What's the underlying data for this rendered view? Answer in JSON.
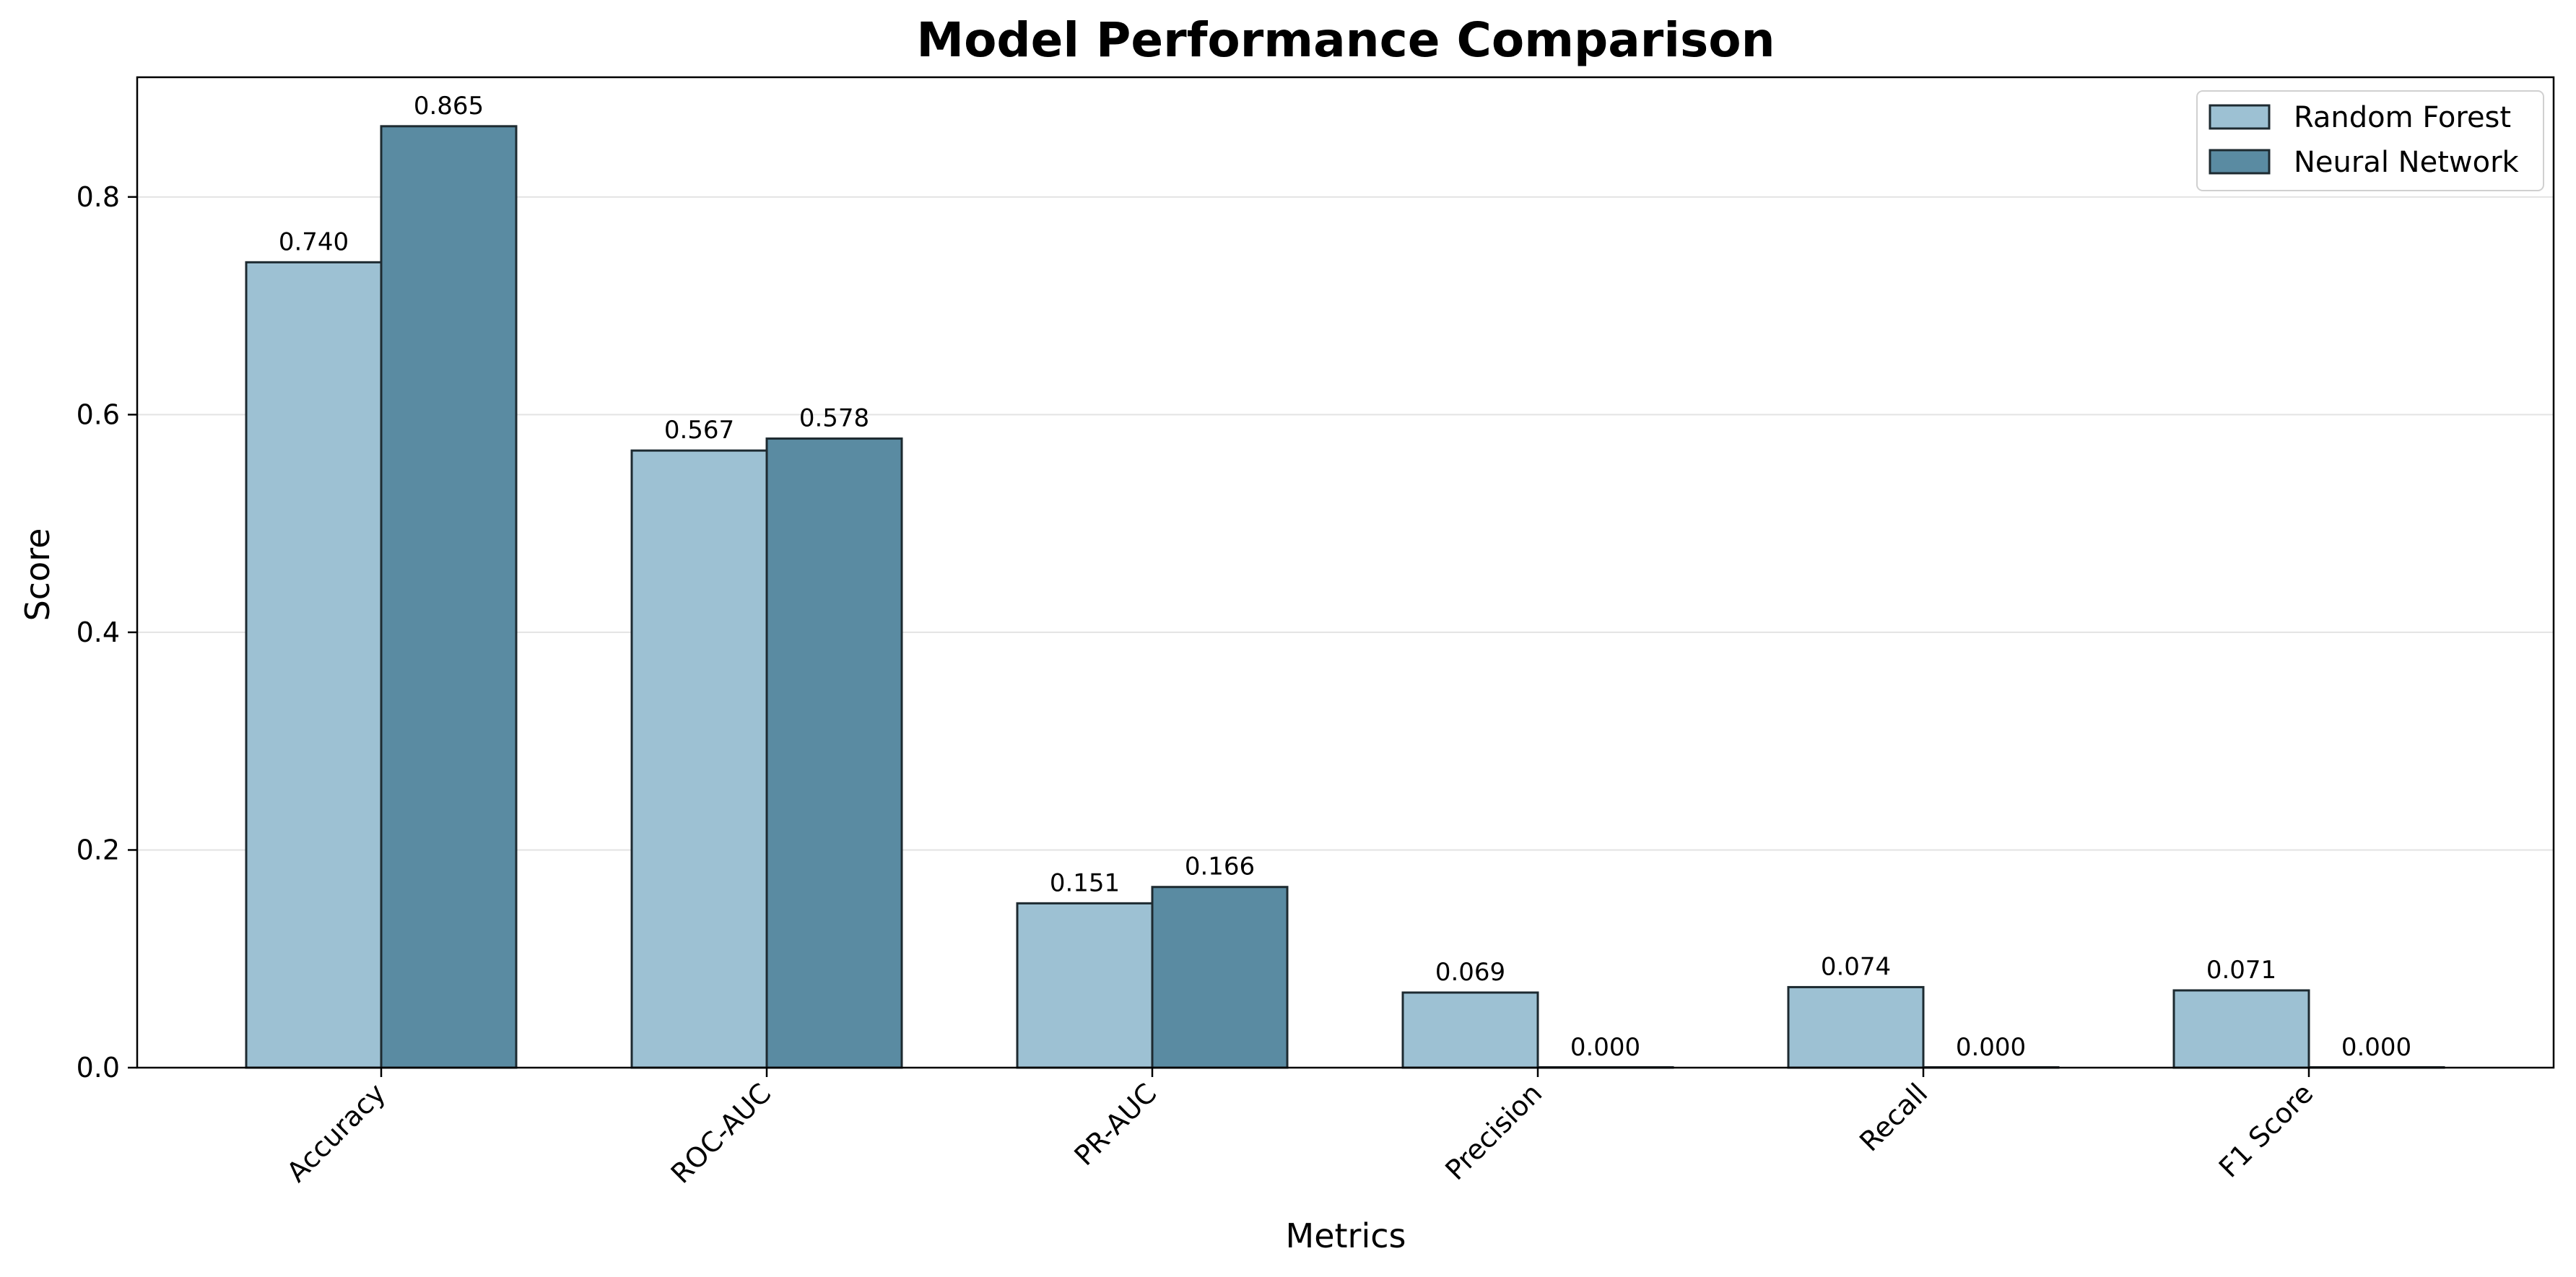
{
  "chart_data": {
    "type": "bar",
    "title": "Model Performance Comparison",
    "xlabel": "Metrics",
    "ylabel": "Score",
    "categories": [
      "Accuracy",
      "ROC-AUC",
      "PR-AUC",
      "Precision",
      "Recall",
      "F1 Score"
    ],
    "series": [
      {
        "name": "Random Forest",
        "color": "#9dc1d3",
        "values": [
          0.74,
          0.567,
          0.151,
          0.069,
          0.074,
          0.071
        ],
        "labels": [
          "0.740",
          "0.567",
          "0.151",
          "0.069",
          "0.074",
          "0.071"
        ]
      },
      {
        "name": "Neural Network",
        "color": "#5a8ba2",
        "values": [
          0.865,
          0.578,
          0.166,
          0.0,
          0.0,
          0.0
        ],
        "labels": [
          "0.865",
          "0.578",
          "0.166",
          "0.000",
          "0.000",
          "0.000"
        ]
      }
    ],
    "yticks": [
      "0.0",
      "0.2",
      "0.4",
      "0.6",
      "0.8"
    ],
    "ylim": [
      0,
      0.91
    ],
    "grid": "horizontal",
    "legend": "top-right"
  }
}
